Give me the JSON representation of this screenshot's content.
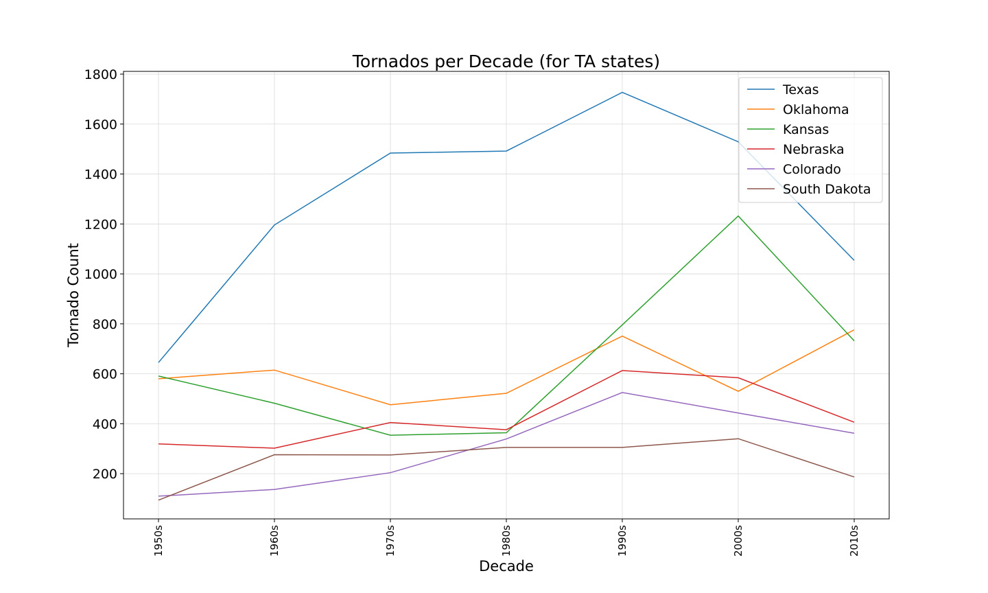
{
  "chart_data": {
    "type": "line",
    "title": "Tornados per Decade (for TA states)",
    "xlabel": "Decade",
    "ylabel": "Tornado Count",
    "categories": [
      "1950s",
      "1960s",
      "1970s",
      "1980s",
      "1990s",
      "2000s",
      "2010s"
    ],
    "yticks": [
      200,
      400,
      600,
      800,
      1000,
      1200,
      1400,
      1600,
      1800
    ],
    "ylim": [
      19,
      1811
    ],
    "grid": true,
    "legend_position": "top-right",
    "series": [
      {
        "name": "Texas",
        "color": "#1f77b4",
        "values": [
          645,
          1196,
          1484,
          1492,
          1727,
          1529,
          1054
        ]
      },
      {
        "name": "Oklahoma",
        "color": "#ff7f0e",
        "values": [
          580,
          615,
          476,
          522,
          751,
          530,
          776
        ]
      },
      {
        "name": "Kansas",
        "color": "#2ca02c",
        "values": [
          591,
          482,
          354,
          364,
          796,
          1232,
          732
        ]
      },
      {
        "name": "Nebraska",
        "color": "#d62728",
        "values": [
          319,
          302,
          405,
          376,
          613,
          584,
          406
        ]
      },
      {
        "name": "Colorado",
        "color": "#9467bd",
        "values": [
          110,
          137,
          204,
          339,
          525,
          443,
          362
        ]
      },
      {
        "name": "South Dakota",
        "color": "#8c564b",
        "values": [
          94,
          276,
          275,
          305,
          305,
          340,
          187
        ]
      }
    ]
  }
}
